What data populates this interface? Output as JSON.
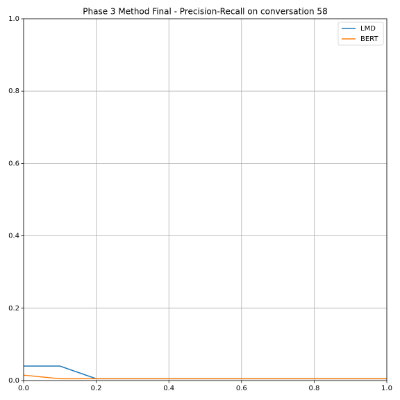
{
  "chart_data": {
    "type": "line",
    "title": "Phase 3 Method Final - Precision-Recall on conversation 58",
    "x": [
      0,
      0.1,
      0.2,
      0.3,
      0.4,
      0.5,
      0.6,
      0.7,
      0.8,
      0.9,
      1.0
    ],
    "series": [
      {
        "name": "LMD",
        "color": "#1f77b4",
        "values": [
          0.04,
          0.04,
          0.005,
          0.005,
          0.005,
          0.005,
          0.005,
          0.005,
          0.005,
          0.005,
          0.005
        ]
      },
      {
        "name": "BERT",
        "color": "#ff7f0e",
        "values": [
          0.015,
          0.005,
          0.005,
          0.005,
          0.005,
          0.005,
          0.005,
          0.005,
          0.005,
          0.005,
          0.005
        ]
      }
    ],
    "xlim": [
      0,
      1
    ],
    "ylim": [
      0,
      1
    ],
    "xticks": [
      {
        "value": 0,
        "label": "0.0"
      },
      0.2,
      0.4,
      0.6,
      0.8,
      {
        "value": 1,
        "label": "1.0"
      }
    ],
    "yticks": [
      {
        "value": 0,
        "label": "0.0"
      },
      0.2,
      0.4,
      0.6,
      0.8,
      {
        "value": 1,
        "label": "1.0"
      }
    ],
    "grid": true,
    "legend": "upper right"
  }
}
